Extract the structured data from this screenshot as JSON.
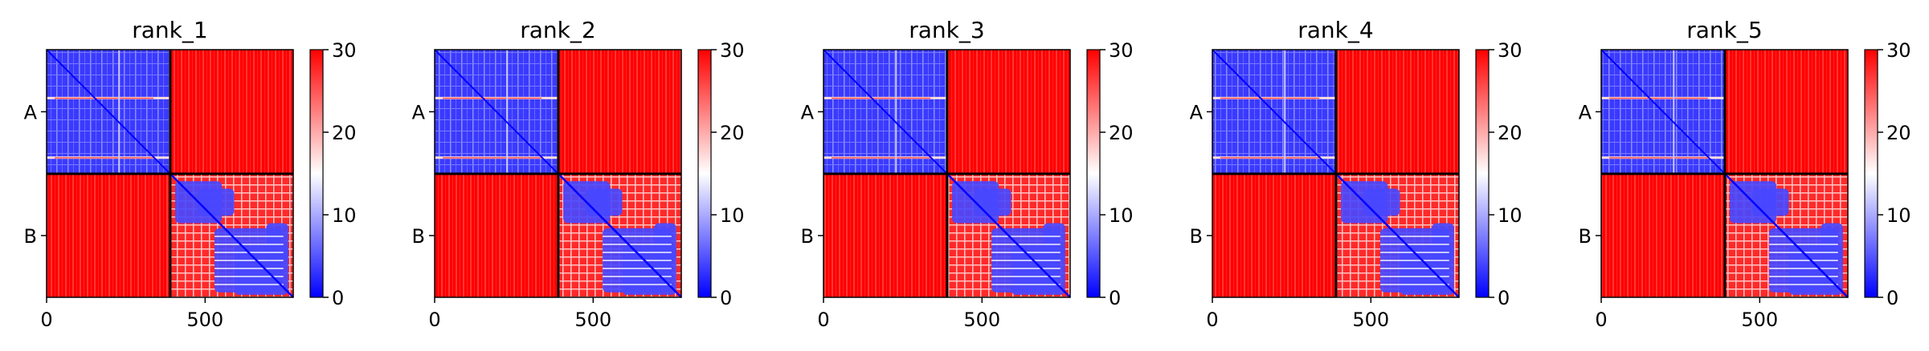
{
  "chart_data": [
    {
      "type": "heatmap",
      "title": "rank_1",
      "xlim": [
        0,
        778
      ],
      "xticks": [
        "0",
        "500"
      ],
      "yticks": [
        "A",
        "B"
      ],
      "chain_boundary": 390,
      "colorbar": {
        "min": 0,
        "max": 30,
        "ticks": [
          "0",
          "10",
          "20",
          "30"
        ],
        "colors": [
          "#0000ff",
          "#ffffff",
          "#ff0000"
        ]
      }
    },
    {
      "type": "heatmap",
      "title": "rank_2",
      "xlim": [
        0,
        778
      ],
      "xticks": [
        "0",
        "500"
      ],
      "yticks": [
        "A",
        "B"
      ],
      "chain_boundary": 390,
      "colorbar": {
        "min": 0,
        "max": 30,
        "ticks": [
          "0",
          "10",
          "20",
          "30"
        ],
        "colors": [
          "#0000ff",
          "#ffffff",
          "#ff0000"
        ]
      }
    },
    {
      "type": "heatmap",
      "title": "rank_3",
      "xlim": [
        0,
        778
      ],
      "xticks": [
        "0",
        "500"
      ],
      "yticks": [
        "A",
        "B"
      ],
      "chain_boundary": 390,
      "colorbar": {
        "min": 0,
        "max": 30,
        "ticks": [
          "0",
          "10",
          "20",
          "30"
        ],
        "colors": [
          "#0000ff",
          "#ffffff",
          "#ff0000"
        ]
      }
    },
    {
      "type": "heatmap",
      "title": "rank_4",
      "xlim": [
        0,
        778
      ],
      "xticks": [
        "0",
        "500"
      ],
      "yticks": [
        "A",
        "B"
      ],
      "chain_boundary": 390,
      "colorbar": {
        "min": 0,
        "max": 30,
        "ticks": [
          "0",
          "10",
          "20",
          "30"
        ],
        "colors": [
          "#0000ff",
          "#ffffff",
          "#ff0000"
        ]
      }
    },
    {
      "type": "heatmap",
      "title": "rank_5",
      "xlim": [
        0,
        778
      ],
      "xticks": [
        "0",
        "500"
      ],
      "yticks": [
        "A",
        "B"
      ],
      "chain_boundary": 390,
      "colorbar": {
        "min": 0,
        "max": 30,
        "ticks": [
          "0",
          "10",
          "20",
          "30"
        ],
        "colors": [
          "#0000ff",
          "#ffffff",
          "#ff0000"
        ]
      }
    }
  ]
}
